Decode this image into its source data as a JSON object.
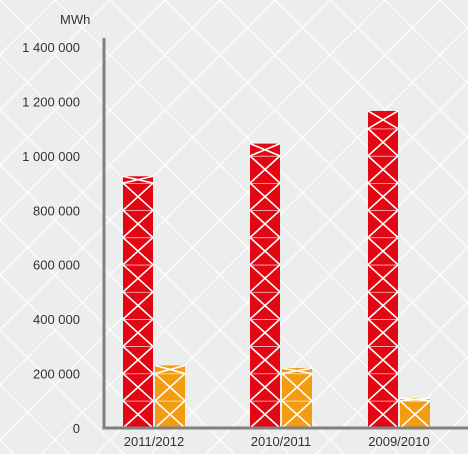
{
  "chart_data": {
    "type": "bar",
    "unit_label": "MWh",
    "categories": [
      "2011/2012",
      "2010/2011",
      "2009/2010"
    ],
    "series": [
      {
        "values": [
          925000,
          1045000,
          1165000
        ],
        "color": "#e30613"
      },
      {
        "values": [
          230000,
          220000,
          110000
        ],
        "color": "#f39c12"
      }
    ],
    "ylim": [
      0,
      1400000
    ],
    "yticks": [
      0,
      200000,
      400000,
      600000,
      800000,
      1000000,
      1200000,
      1400000
    ],
    "ytick_labels": [
      "0",
      "200 000",
      "400 000",
      "600 000",
      "800 000",
      "1 000 000",
      "1 200 000",
      "1 400 000"
    ],
    "grid": false,
    "background": "#eceded",
    "pattern_color": "#ffffff",
    "axis_color": "#808080"
  }
}
